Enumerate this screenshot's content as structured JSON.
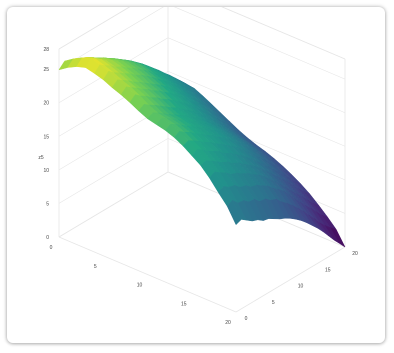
{
  "chart_data": {
    "type": "surface",
    "title": "",
    "colorscale": "viridis",
    "grid": true,
    "z_axis": {
      "label": "z5",
      "range": [
        0,
        28
      ],
      "ticks": [
        "0",
        "5",
        "10",
        "15",
        "20",
        "25",
        "28"
      ]
    },
    "x_axis": {
      "label": "",
      "range": [
        0,
        20
      ],
      "ticks": [
        "0",
        "5",
        "10",
        "15",
        "20"
      ]
    },
    "y_axis": {
      "label": "",
      "range": [
        0,
        20
      ],
      "ticks": [
        "0",
        "5",
        "10",
        "15",
        "20"
      ]
    },
    "z_values": [
      [
        13.0,
        13.3,
        12.7,
        12.1,
        11.8,
        11.2,
        11.0,
        10.5,
        10.0,
        9.6,
        9.1,
        8.5,
        7.8,
        7.0,
        6.1,
        5.2,
        4.2,
        3.1,
        2.0,
        1.0,
        0.0
      ],
      [
        15.2,
        15.6,
        14.7,
        14.6,
        13.9,
        13.8,
        13.0,
        12.9,
        12.2,
        11.9,
        11.0,
        10.3,
        9.5,
        8.6,
        7.7,
        6.6,
        5.6,
        4.5,
        3.6,
        2.8,
        2.1
      ],
      [
        16.7,
        17.1,
        16.5,
        16.3,
        15.5,
        15.3,
        14.6,
        14.4,
        13.8,
        13.3,
        12.5,
        11.8,
        11.1,
        10.1,
        9.0,
        8.0,
        7.0,
        6.1,
        5.1,
        4.1,
        3.4
      ],
      [
        18.3,
        18.7,
        18.1,
        17.6,
        16.9,
        16.6,
        16.0,
        15.6,
        14.9,
        14.4,
        13.7,
        12.8,
        12.0,
        11.0,
        10.1,
        9.1,
        8.2,
        7.3,
        6.3,
        5.3,
        4.6
      ],
      [
        19.6,
        19.8,
        19.3,
        18.7,
        18.1,
        17.7,
        17.0,
        16.6,
        15.9,
        15.3,
        14.6,
        13.8,
        13.0,
        12.1,
        11.2,
        10.3,
        9.4,
        8.4,
        7.4,
        6.5,
        5.7
      ],
      [
        20.5,
        20.9,
        20.4,
        19.7,
        19.2,
        18.7,
        17.9,
        17.5,
        16.8,
        16.2,
        15.4,
        14.7,
        13.8,
        13.0,
        12.1,
        11.2,
        10.3,
        9.4,
        8.4,
        7.4,
        6.6
      ],
      [
        21.4,
        21.7,
        21.2,
        20.6,
        20.0,
        19.5,
        18.8,
        18.3,
        17.6,
        17.0,
        16.3,
        15.5,
        14.7,
        13.8,
        12.9,
        12.1,
        11.1,
        10.2,
        9.2,
        8.3,
        7.4
      ],
      [
        22.1,
        22.5,
        21.9,
        21.4,
        20.7,
        20.2,
        19.5,
        19.0,
        18.3,
        17.7,
        17.0,
        16.2,
        15.4,
        14.5,
        13.7,
        12.8,
        11.9,
        10.9,
        10.0,
        9.0,
        8.1
      ],
      [
        22.6,
        23.0,
        22.5,
        21.9,
        21.3,
        20.8,
        20.1,
        19.6,
        18.9,
        18.3,
        17.6,
        16.8,
        16.0,
        15.1,
        14.3,
        13.4,
        12.5,
        11.5,
        10.6,
        9.6,
        8.7
      ],
      [
        22.9,
        23.4,
        22.8,
        22.3,
        21.7,
        21.2,
        20.5,
        20.0,
        19.3,
        18.7,
        18.0,
        17.2,
        16.4,
        15.6,
        14.7,
        13.8,
        12.9,
        12.0,
        11.0,
        10.1,
        9.2
      ],
      [
        23.2,
        23.6,
        23.1,
        22.5,
        21.9,
        21.4,
        20.8,
        20.3,
        19.6,
        19.0,
        18.3,
        17.5,
        16.7,
        15.9,
        15.1,
        14.2,
        13.3,
        12.4,
        11.4,
        10.5,
        9.6
      ],
      [
        23.8,
        24.3,
        23.7,
        23.2,
        22.6,
        22.0,
        21.4,
        20.9,
        20.2,
        19.6,
        18.9,
        18.1,
        17.3,
        16.5,
        15.6,
        14.7,
        13.8,
        12.9,
        11.9,
        11.0,
        10.1
      ],
      [
        24.5,
        25.2,
        24.5,
        24.0,
        23.3,
        22.8,
        22.1,
        21.6,
        20.9,
        20.3,
        19.6,
        18.8,
        18.0,
        17.1,
        16.3,
        15.4,
        14.4,
        13.5,
        12.6,
        11.6,
        10.7
      ],
      [
        25.1,
        25.8,
        25.2,
        24.6,
        24.0,
        23.5,
        22.8,
        22.3,
        21.6,
        21.0,
        20.3,
        19.5,
        18.7,
        17.8,
        17.0,
        16.1,
        15.1,
        14.2,
        13.3,
        12.3,
        11.4
      ],
      [
        25.6,
        26.3,
        25.7,
        25.2,
        24.5,
        24.0,
        23.4,
        22.8,
        22.2,
        21.6,
        20.9,
        20.1,
        19.3,
        18.5,
        17.6,
        16.7,
        15.8,
        14.9,
        13.9,
        13.0,
        12.1
      ],
      [
        26.2,
        27.0,
        26.3,
        25.8,
        25.2,
        24.7,
        24.0,
        23.5,
        22.9,
        22.2,
        21.5,
        20.8,
        20.0,
        19.2,
        18.3,
        17.4,
        16.5,
        15.6,
        14.6,
        13.7,
        12.8
      ],
      [
        26.6,
        27.4,
        26.8,
        26.3,
        25.6,
        25.2,
        24.5,
        24.0,
        23.4,
        22.8,
        22.1,
        21.3,
        20.6,
        19.7,
        18.9,
        18.0,
        17.1,
        16.2,
        15.3,
        14.4,
        13.5
      ],
      [
        26.9,
        27.8,
        27.2,
        26.7,
        26.0,
        25.6,
        25.0,
        24.5,
        23.8,
        23.2,
        22.6,
        21.8,
        21.1,
        20.3,
        19.4,
        18.6,
        17.7,
        16.8,
        15.9,
        15.0,
        14.1
      ],
      [
        26.5,
        27.3,
        26.9,
        26.4,
        25.8,
        25.4,
        24.8,
        24.3,
        23.7,
        23.1,
        22.5,
        21.8,
        21.1,
        20.3,
        19.5,
        18.7,
        17.8,
        17.0,
        16.1,
        15.2,
        14.3
      ],
      [
        25.8,
        26.6,
        26.2,
        25.8,
        25.2,
        24.8,
        24.3,
        23.8,
        23.2,
        22.7,
        22.1,
        21.4,
        20.7,
        20.0,
        19.2,
        18.4,
        17.6,
        16.8,
        15.9,
        15.1,
        14.2
      ],
      [
        24.9,
        25.7,
        25.3,
        24.9,
        24.4,
        24.1,
        23.5,
        23.1,
        22.6,
        22.0,
        21.5,
        20.8,
        20.2,
        19.5,
        18.8,
        18.0,
        17.2,
        16.4,
        15.6,
        14.8,
        14.0
      ]
    ]
  }
}
